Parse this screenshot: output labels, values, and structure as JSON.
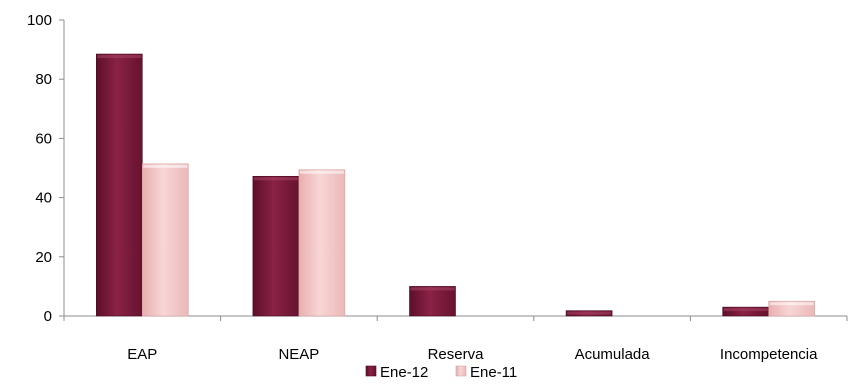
{
  "chart_data": {
    "type": "bar",
    "title": "",
    "xlabel": "",
    "ylabel": "",
    "categories": [
      "EAP",
      "NEAP",
      "Reserva",
      "Acumulada",
      "Incompetencia"
    ],
    "series": [
      {
        "name": "Ene-12",
        "values": [
          88.5,
          47.2,
          10.0,
          1.8,
          3.0
        ],
        "color": "#7b1a3c"
      },
      {
        "name": "Ene-11",
        "values": [
          51.4,
          49.4,
          0,
          0,
          5.0
        ],
        "color": "#f2c3c3"
      }
    ],
    "ylim": [
      0,
      100
    ],
    "yticks": [
      "0",
      "20",
      "40",
      "60",
      "80",
      "100"
    ],
    "grid": false,
    "legend_position": "bottom"
  }
}
